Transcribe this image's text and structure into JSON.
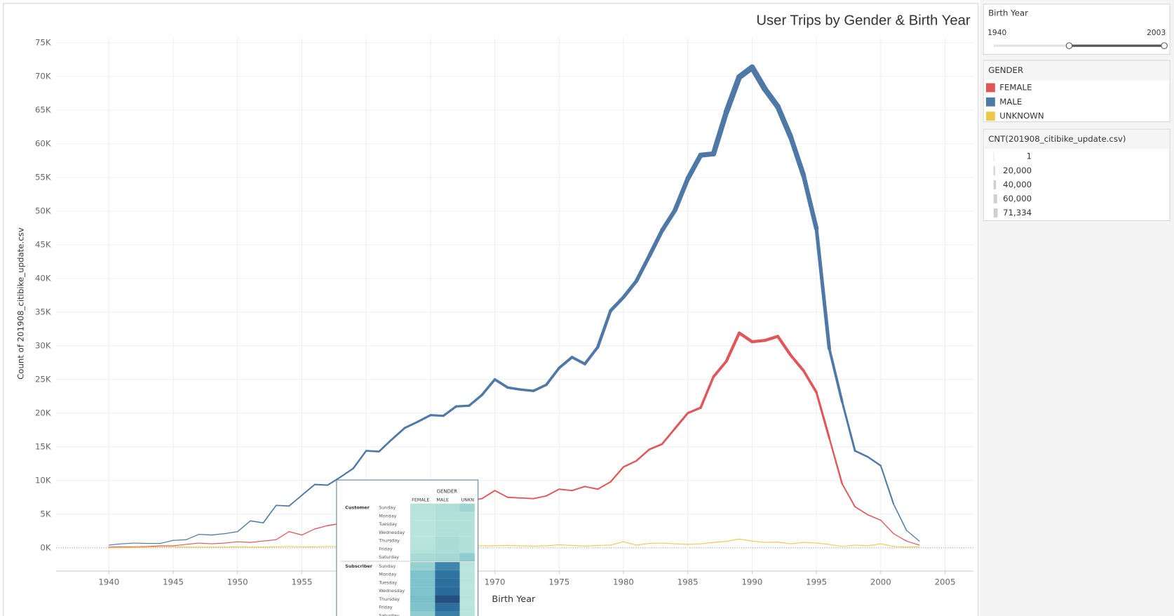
{
  "chart_data": {
    "type": "line",
    "title": "User Trips by Gender & Birth Year",
    "x_label": "Birth Year",
    "y_label": "Count of 201908_citibike_update.csv",
    "x": [
      1940,
      1941,
      1942,
      1943,
      1944,
      1945,
      1946,
      1947,
      1948,
      1949,
      1950,
      1951,
      1952,
      1953,
      1954,
      1955,
      1956,
      1957,
      1958,
      1959,
      1960,
      1961,
      1962,
      1963,
      1964,
      1965,
      1966,
      1967,
      1968,
      1969,
      1970,
      1971,
      1972,
      1973,
      1974,
      1975,
      1976,
      1977,
      1978,
      1979,
      1980,
      1981,
      1982,
      1983,
      1984,
      1985,
      1986,
      1987,
      1988,
      1989,
      1990,
      1991,
      1992,
      1993,
      1994,
      1995,
      1996,
      1997,
      1998,
      1999,
      2000,
      2001,
      2002,
      2003
    ],
    "series": [
      {
        "name": "FEMALE",
        "color": "#e15759",
        "values": [
          100,
          150,
          150,
          200,
          300,
          300,
          500,
          700,
          600,
          700,
          900,
          800,
          1000,
          1200,
          2400,
          1900,
          2800,
          3300,
          3600,
          4300,
          4800,
          5000,
          5400,
          5800,
          6200,
          6300,
          6600,
          6900,
          7000,
          7300,
          8500,
          7500,
          7400,
          7300,
          7700,
          8700,
          8500,
          9100,
          8700,
          9800,
          12000,
          12900,
          14600,
          15400,
          17700,
          20000,
          20800,
          25400,
          27700,
          31900,
          30600,
          30800,
          31400,
          28600,
          26300,
          23100,
          16300,
          9500,
          6100,
          4900,
          4100,
          2100,
          1000,
          400
        ]
      },
      {
        "name": "MALE",
        "color": "#4e79a7",
        "values": [
          400,
          600,
          700,
          650,
          650,
          1100,
          1200,
          2000,
          1900,
          2100,
          2400,
          4000,
          3700,
          6300,
          6200,
          7800,
          9400,
          9300,
          10500,
          11800,
          14400,
          14300,
          16100,
          17800,
          18700,
          19700,
          19600,
          21000,
          21100,
          22700,
          25000,
          23800,
          23500,
          23300,
          24200,
          26700,
          28300,
          27300,
          29800,
          35200,
          37200,
          39600,
          43300,
          47100,
          50100,
          54800,
          58300,
          58500,
          64700,
          69900,
          71334,
          68100,
          65500,
          61000,
          55300,
          47400,
          29600,
          21700,
          14400,
          13500,
          12200,
          6500,
          2600,
          1000
        ]
      },
      {
        "name": "UNKNOWN",
        "color": "#edc948",
        "values": [
          0,
          0,
          50,
          100,
          150,
          150,
          100,
          100,
          100,
          100,
          150,
          100,
          100,
          150,
          200,
          150,
          150,
          200,
          200,
          250,
          250,
          250,
          250,
          300,
          300,
          300,
          300,
          300,
          300,
          300,
          300,
          350,
          300,
          250,
          300,
          450,
          350,
          250,
          350,
          400,
          900,
          400,
          650,
          700,
          600,
          500,
          600,
          800,
          950,
          1300,
          1000,
          800,
          850,
          600,
          800,
          700,
          500,
          200,
          400,
          300,
          600,
          200,
          100,
          150
        ]
      }
    ],
    "xlim": [
      1935.9,
      2007.2
    ],
    "xticks": [
      1940,
      1945,
      1950,
      1955,
      1960,
      1965,
      1970,
      1975,
      1980,
      1985,
      1990,
      1995,
      2000,
      2005
    ],
    "ylim": [
      -3450,
      75780
    ],
    "yticks": [
      {
        "value": 0,
        "label": "0K"
      },
      {
        "value": 5000,
        "label": "5K"
      },
      {
        "value": 10000,
        "label": "10K"
      },
      {
        "value": 15000,
        "label": "15K"
      },
      {
        "value": 20000,
        "label": "20K"
      },
      {
        "value": 25000,
        "label": "25K"
      },
      {
        "value": 30000,
        "label": "30K"
      },
      {
        "value": 35000,
        "label": "35K"
      },
      {
        "value": 40000,
        "label": "40K"
      },
      {
        "value": 45000,
        "label": "45K"
      },
      {
        "value": 50000,
        "label": "50K"
      },
      {
        "value": 55000,
        "label": "55K"
      },
      {
        "value": 60000,
        "label": "60K"
      },
      {
        "value": 65000,
        "label": "65K"
      },
      {
        "value": 70000,
        "label": "70K"
      },
      {
        "value": 75000,
        "label": "75K"
      }
    ],
    "grid": true
  },
  "filter": {
    "title": "Birth Year",
    "min_label": "1940",
    "max_label": "2003"
  },
  "color_legend": {
    "title": "GENDER"
  },
  "size_legend": {
    "title": "CNT(201908_citibike_update.csv)",
    "items": [
      1,
      {
        "value": 20000,
        "label": "20,000"
      },
      {
        "value": 40000,
        "label": "40,000"
      },
      {
        "value": 60000,
        "label": "60,000"
      },
      {
        "value": 71334,
        "label": "71,334"
      }
    ]
  },
  "tooltip": {
    "header": "GENDER",
    "columns": [
      "FEMALE",
      "MALE",
      "UNKN"
    ],
    "groups": [
      {
        "name": "Customer",
        "rows": [
          "Sunday",
          "Monday",
          "Tuesday",
          "Wednesday",
          "Thursday",
          "Friday",
          "Saturday"
        ],
        "colors": [
          [
            "#b5e3da",
            "#b0dfd9",
            "#9fd6d2"
          ],
          [
            "#b8e4db",
            "#b3e1da",
            "#b3e1da"
          ],
          [
            "#b8e4db",
            "#b3e1da",
            "#b3e1da"
          ],
          [
            "#b8e4db",
            "#b0dfd9",
            "#b3e1da"
          ],
          [
            "#b8e4db",
            "#acdcd8",
            "#b3e1da"
          ],
          [
            "#b5e3da",
            "#acdcd8",
            "#b3e1da"
          ],
          [
            "#a8dad6",
            "#a4d8d5",
            "#8fccd0"
          ]
        ]
      },
      {
        "name": "Subscriber",
        "rows": [
          "Sunday",
          "Monday",
          "Tuesday",
          "Wednesday",
          "Thursday",
          "Friday",
          "Saturday"
        ],
        "colors": [
          [
            "#97d0d0",
            "#3f86ad",
            "#b8e4db"
          ],
          [
            "#7fc3cc",
            "#2f739f",
            "#b8e4db"
          ],
          [
            "#7fc3cc",
            "#2d6f9c",
            "#b8e4db"
          ],
          [
            "#7fc3cc",
            "#2b6b99",
            "#b8e4db"
          ],
          [
            "#7abfca",
            "#24507f",
            "#b8e4db"
          ],
          [
            "#7fc3cc",
            "#2d6f9c",
            "#b8e4db"
          ],
          [
            "#8fcbcf",
            "#3a7fa8",
            "#b8e4db"
          ]
        ]
      }
    ]
  }
}
